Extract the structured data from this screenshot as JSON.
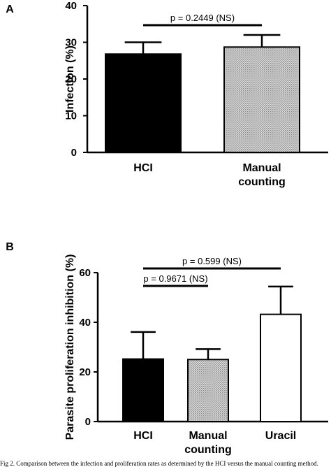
{
  "chart_data": [
    {
      "type": "bar",
      "panel_label": "A",
      "categories": [
        "HCI",
        "Manual\ncounting"
      ],
      "values": [
        26.8,
        28.7
      ],
      "errors": [
        3.2,
        3.3
      ],
      "fills": [
        "solid-black",
        "gray-dotted"
      ],
      "ylabel": "Infection (%)",
      "ylim": [
        0,
        40
      ],
      "yticks": [
        0,
        10,
        20,
        30,
        40
      ],
      "comparisons": [
        {
          "from": 0,
          "to": 1,
          "label": "p = 0.2449 (NS)"
        }
      ]
    },
    {
      "type": "bar",
      "panel_label": "B",
      "categories": [
        "HCI",
        "Manual\ncounting",
        "Uracil"
      ],
      "values": [
        25.2,
        25.0,
        43.2
      ],
      "errors": [
        10.9,
        4.2,
        11.2
      ],
      "fills": [
        "solid-black",
        "gray-dotted",
        "white-outline"
      ],
      "ylabel": "Parasite proliferation inhibition (%)",
      "ylim": [
        0,
        60
      ],
      "yticks": [
        0,
        20,
        40,
        60
      ],
      "comparisons": [
        {
          "from": 0,
          "to": 1,
          "label": "p = 0.9671 (NS)"
        },
        {
          "from": 0,
          "to": 2,
          "label": "p = 0.599 (NS)"
        }
      ]
    }
  ],
  "caption": "Fig 2. Comparison between the infection and proliferation rates as determined by the HCI versus the manual counting method."
}
